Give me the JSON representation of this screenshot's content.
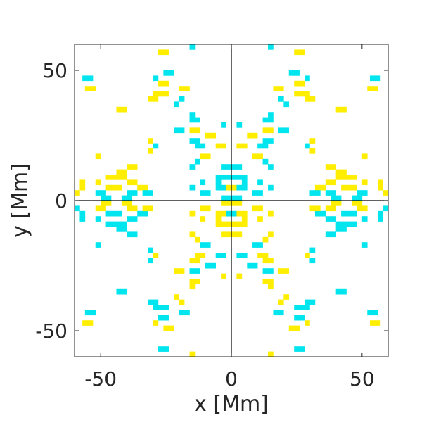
{
  "chart_data": {
    "type": "heatmap",
    "xlabel": "x [Mm]",
    "ylabel": "y [Mm]",
    "xlim": [
      -60,
      60
    ],
    "ylim": [
      -60,
      60
    ],
    "xticks": [
      -50,
      0,
      50
    ],
    "yticks": [
      -50,
      0,
      50
    ],
    "xtick_labels": [
      "-50",
      "0",
      "50"
    ],
    "ytick_labels": [
      "-50",
      "0",
      "50"
    ],
    "grid": false,
    "zero_lines": true,
    "colors": {
      "positive": "#ffee00",
      "negative": "#00e5ee",
      "background": "#ffffff",
      "frame": "#262626"
    },
    "cell_size_mm": 2,
    "symmetry": "four-fold mirror about x=0 and y=0; sign flips across y=0",
    "quadrant_cells_upper_right": [
      [
        15,
        59,
        "negative"
      ],
      [
        25,
        57,
        "positive"
      ],
      [
        27,
        57,
        "positive"
      ],
      [
        23,
        49,
        "negative"
      ],
      [
        25,
        49,
        "negative"
      ],
      [
        29,
        47,
        "negative"
      ],
      [
        54,
        47,
        "negative"
      ],
      [
        56,
        47,
        "negative"
      ],
      [
        25,
        45,
        "positive"
      ],
      [
        27,
        45,
        "positive"
      ],
      [
        17,
        43,
        "positive"
      ],
      [
        19,
        43,
        "positive"
      ],
      [
        53,
        43,
        "positive"
      ],
      [
        55,
        43,
        "positive"
      ],
      [
        25,
        41,
        "positive"
      ],
      [
        27,
        41,
        "positive"
      ],
      [
        29,
        41,
        "positive"
      ],
      [
        19,
        39,
        "negative"
      ],
      [
        29,
        39,
        "positive"
      ],
      [
        31,
        39,
        "positive"
      ],
      [
        21,
        37,
        "negative"
      ],
      [
        41,
        35,
        "positive"
      ],
      [
        43,
        35,
        "positive"
      ],
      [
        15,
        33,
        "negative"
      ],
      [
        13,
        31,
        "negative"
      ],
      [
        15,
        31,
        "negative"
      ],
      [
        3,
        29,
        "negative"
      ],
      [
        13,
        27,
        "positive"
      ],
      [
        15,
        27,
        "positive"
      ],
      [
        19,
        27,
        "negative"
      ],
      [
        21,
        27,
        "negative"
      ],
      [
        7,
        25,
        "positive"
      ],
      [
        9,
        25,
        "positive"
      ],
      [
        13,
        23,
        "negative"
      ],
      [
        15,
        23,
        "negative"
      ],
      [
        29,
        21,
        "negative"
      ],
      [
        31,
        23,
        "positive"
      ],
      [
        3,
        21,
        "positive"
      ],
      [
        5,
        21,
        "positive"
      ],
      [
        11,
        21,
        "negative"
      ],
      [
        13,
        21,
        "negative"
      ],
      [
        31,
        19,
        "positive"
      ],
      [
        51,
        17,
        "positive"
      ],
      [
        9,
        17,
        "positive"
      ],
      [
        11,
        17,
        "positive"
      ],
      [
        13,
        15,
        "negative"
      ],
      [
        1,
        13,
        "negative"
      ],
      [
        3,
        13,
        "negative"
      ],
      [
        15,
        13,
        "negative"
      ],
      [
        37,
        13,
        "positive"
      ],
      [
        39,
        13,
        "positive"
      ],
      [
        41,
        11,
        "positive"
      ],
      [
        43,
        11,
        "positive"
      ],
      [
        41,
        9,
        "positive"
      ],
      [
        43,
        9,
        "positive"
      ],
      [
        45,
        9,
        "positive"
      ],
      [
        47,
        9,
        "positive"
      ],
      [
        1,
        9,
        "negative"
      ],
      [
        3,
        9,
        "negative"
      ],
      [
        5,
        9,
        "negative"
      ],
      [
        5,
        7,
        "negative"
      ],
      [
        11,
        7,
        "negative"
      ],
      [
        37,
        7,
        "positive"
      ],
      [
        39,
        7,
        "positive"
      ],
      [
        51,
        7,
        "positive"
      ],
      [
        57,
        7,
        "positive"
      ],
      [
        1,
        5,
        "positive"
      ],
      [
        3,
        5,
        "negative"
      ],
      [
        5,
        5,
        "negative"
      ],
      [
        15,
        5,
        "negative"
      ],
      [
        33,
        5,
        "positive"
      ],
      [
        35,
        5,
        "positive"
      ],
      [
        43,
        5,
        "positive"
      ],
      [
        45,
        5,
        "positive"
      ],
      [
        47,
        5,
        "positive"
      ],
      [
        57,
        5,
        "positive"
      ],
      [
        31,
        3,
        "negative"
      ],
      [
        33,
        3,
        "negative"
      ],
      [
        37,
        3,
        "negative"
      ],
      [
        39,
        3,
        "negative"
      ],
      [
        49,
        3,
        "negative"
      ],
      [
        51,
        3,
        "negative"
      ],
      [
        59,
        3,
        "positive"
      ],
      [
        9,
        3,
        "negative"
      ],
      [
        11,
        3,
        "negative"
      ],
      [
        1,
        1,
        "negative"
      ],
      [
        3,
        1,
        "negative"
      ],
      [
        39,
        1,
        "negative"
      ],
      [
        41,
        1,
        "negative"
      ],
      [
        47,
        1,
        "negative"
      ],
      [
        49,
        1,
        "negative"
      ]
    ]
  }
}
